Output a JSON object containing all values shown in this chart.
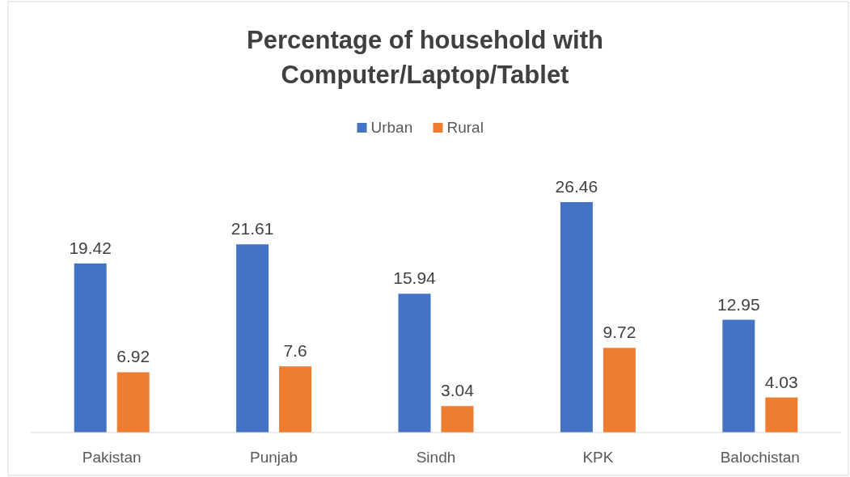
{
  "chart_data": {
    "type": "bar",
    "title": "Percentage of household with Computer/Laptop/Tablet",
    "categories": [
      "Pakistan",
      "Punjab",
      "Sindh",
      "KPK",
      "Balochistan"
    ],
    "series": [
      {
        "name": "Urban",
        "color": "#4472c4",
        "values": [
          19.42,
          21.61,
          15.94,
          26.46,
          12.95
        ]
      },
      {
        "name": "Rural",
        "color": "#ed7d31",
        "values": [
          6.92,
          7.6,
          3.04,
          9.72,
          4.03
        ]
      }
    ],
    "data_labels": true,
    "legend": "top"
  }
}
